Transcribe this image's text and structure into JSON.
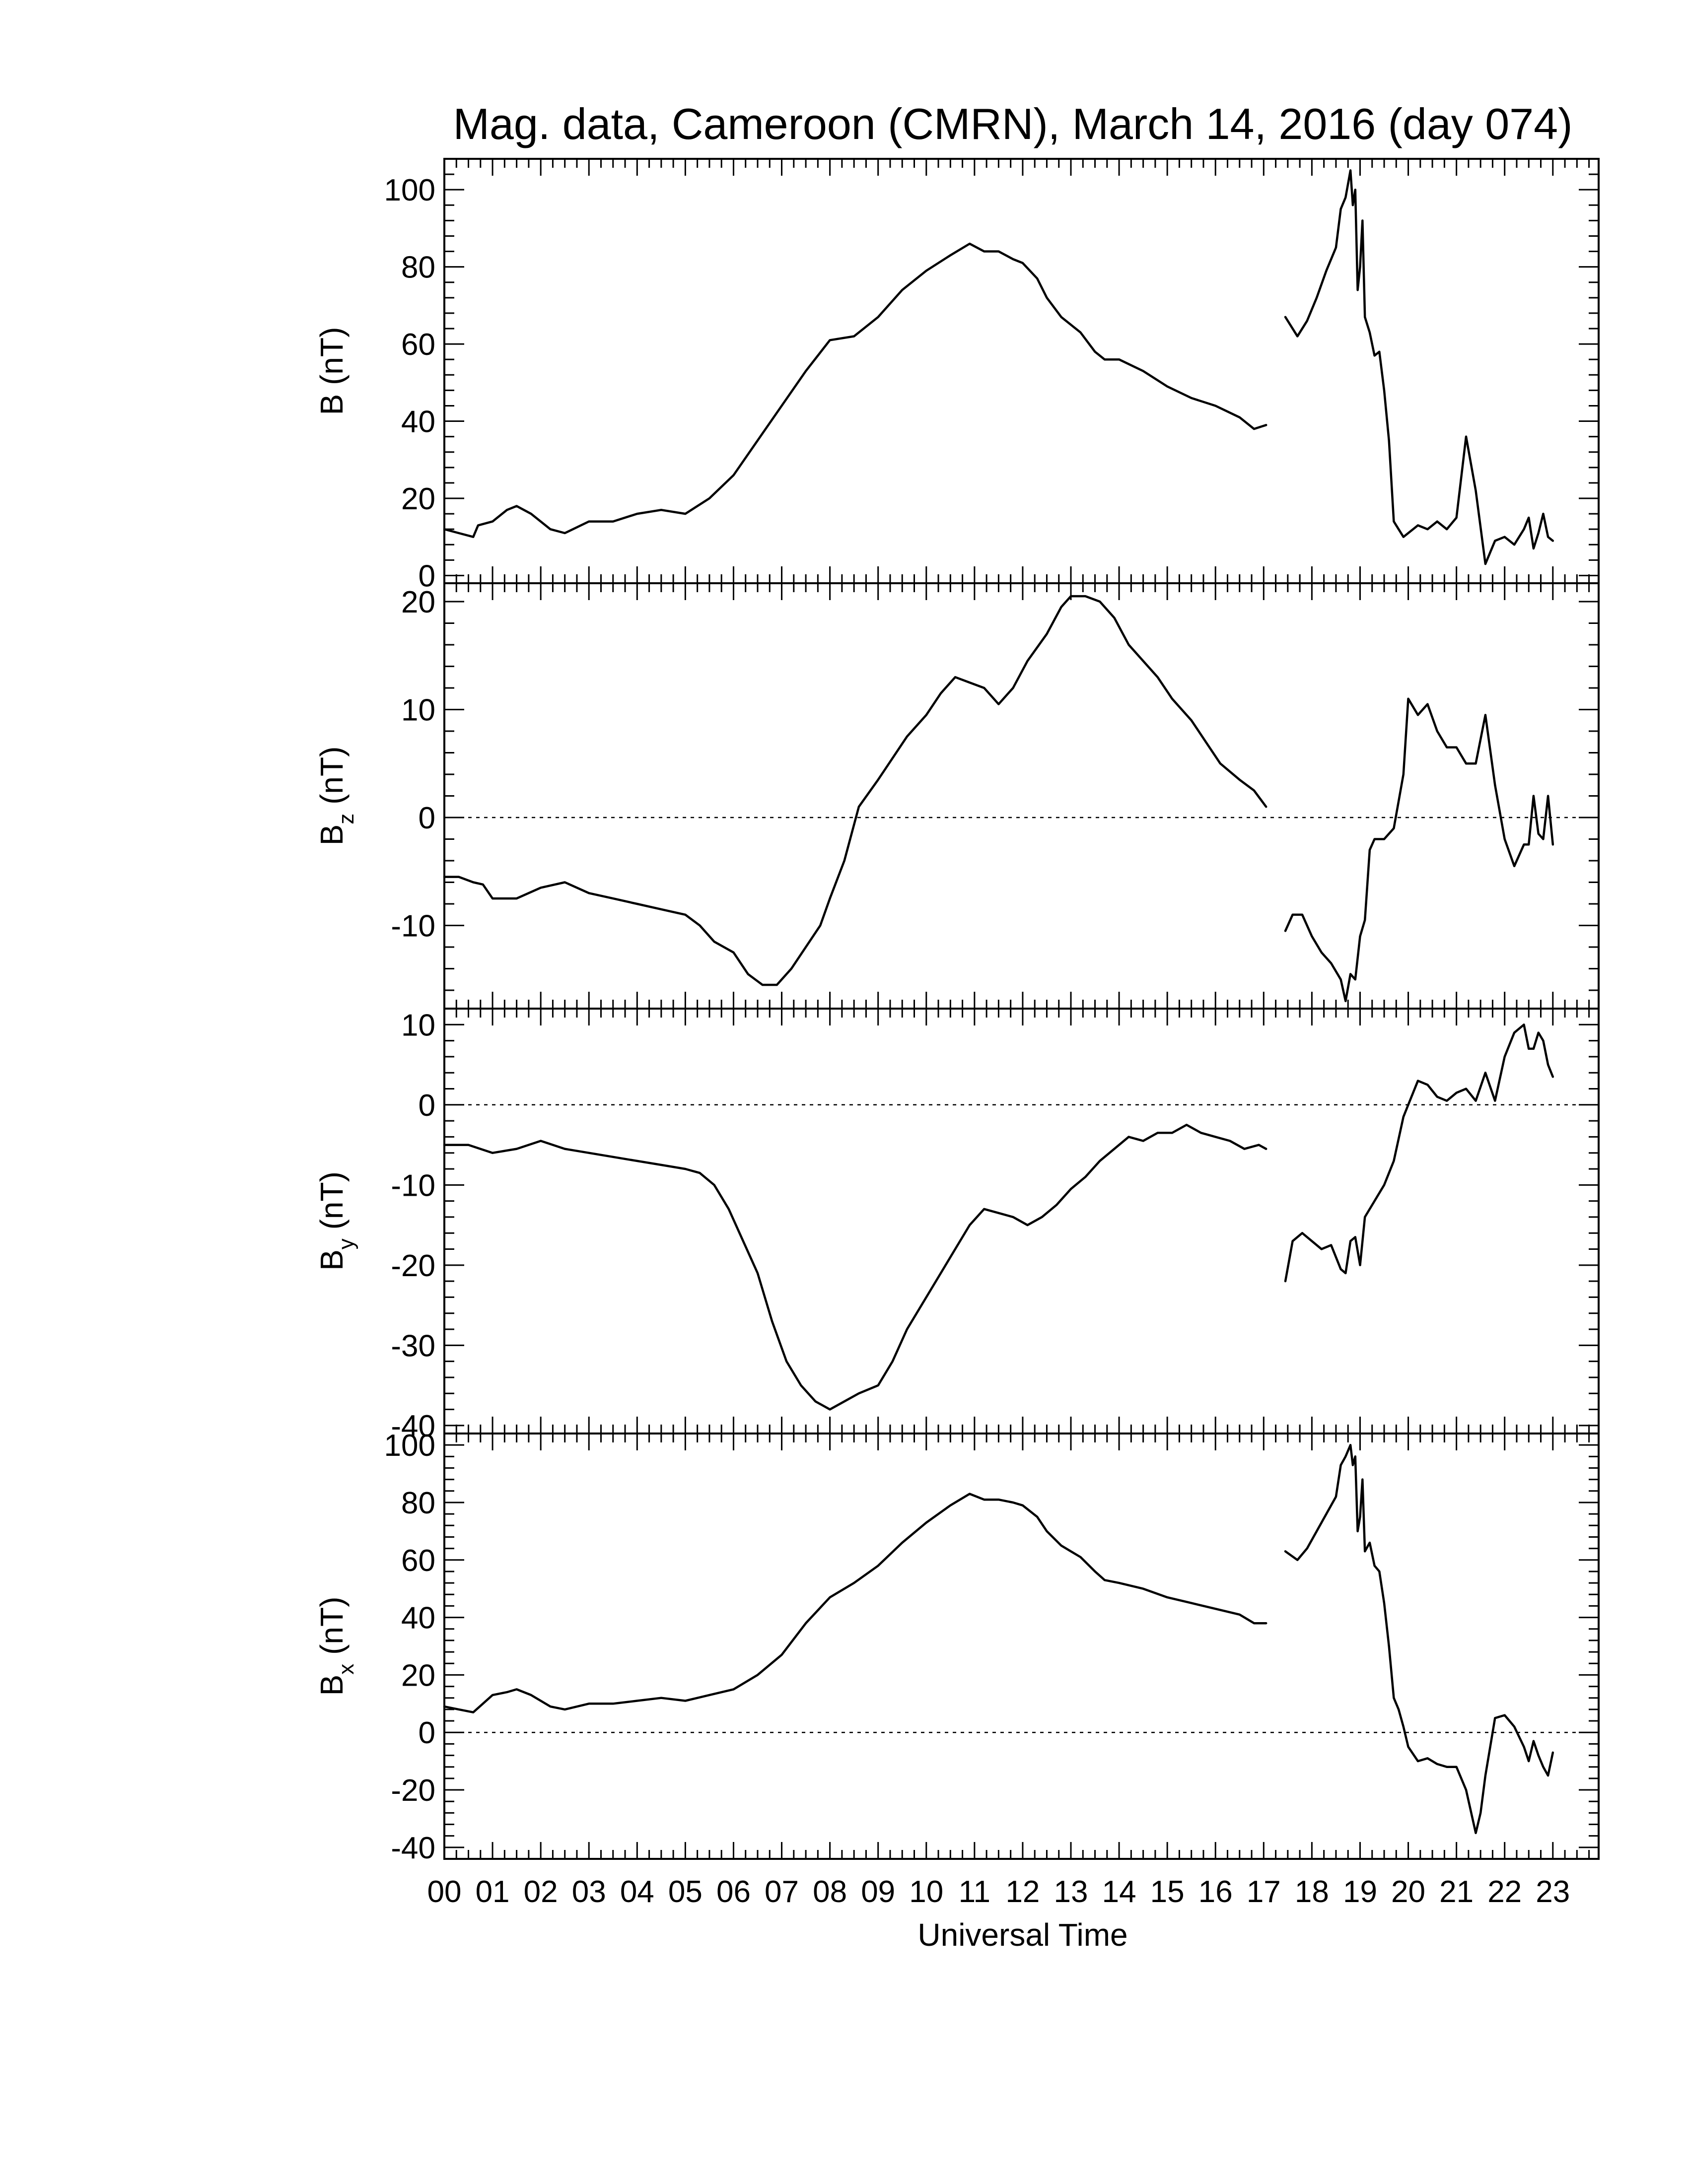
{
  "chart_data": {
    "type": "line",
    "title": "Mag. data, Cameroon (CMRN), March 14, 2016 (day 074)",
    "xlabel": "Universal Time",
    "x_tick_labels": [
      "00",
      "01",
      "02",
      "03",
      "04",
      "05",
      "06",
      "07",
      "08",
      "09",
      "10",
      "11",
      "12",
      "13",
      "14",
      "15",
      "16",
      "17",
      "18",
      "19",
      "20",
      "21",
      "22",
      "23"
    ],
    "xlim": [
      0,
      23.95
    ],
    "data_gap_hours": [
      17.05,
      17.45
    ],
    "panels": [
      {
        "id": "B",
        "ylabel": {
          "main": "B",
          "sub": "",
          "unit": "(nT)"
        },
        "ylim": [
          -2,
          108
        ],
        "yticks": [
          0,
          20,
          40,
          60,
          80,
          100
        ],
        "zero_line": false,
        "series": {
          "x": [
            0,
            0.3,
            0.6,
            0.7,
            1.0,
            1.3,
            1.5,
            1.8,
            2.2,
            2.5,
            3.0,
            3.5,
            4.0,
            4.5,
            5.0,
            5.5,
            6.0,
            6.5,
            7.0,
            7.5,
            8.0,
            8.5,
            9.0,
            9.5,
            10.0,
            10.5,
            10.9,
            11.2,
            11.5,
            11.8,
            12.0,
            12.3,
            12.5,
            12.8,
            13.2,
            13.5,
            13.7,
            14.0,
            14.5,
            15.0,
            15.5,
            16.0,
            16.5,
            16.8,
            17.05,
            null,
            17.45,
            17.7,
            17.9,
            18.1,
            18.3,
            18.5,
            18.6,
            18.7,
            18.8,
            18.85,
            18.9,
            18.95,
            19.0,
            19.05,
            19.1,
            19.2,
            19.3,
            19.4,
            19.5,
            19.6,
            19.7,
            19.8,
            19.9,
            20.0,
            20.2,
            20.4,
            20.6,
            20.8,
            21.0,
            21.2,
            21.4,
            21.6,
            21.7,
            21.8,
            22.0,
            22.2,
            22.4,
            22.5,
            22.6,
            22.7,
            22.8,
            22.9,
            23.0
          ],
          "y": [
            12,
            11,
            10,
            13,
            14,
            17,
            18,
            16,
            12,
            11,
            14,
            14,
            16,
            17,
            16,
            20,
            26,
            35,
            44,
            53,
            61,
            62,
            67,
            74,
            79,
            83,
            86,
            84,
            84,
            82,
            81,
            77,
            72,
            67,
            63,
            58,
            56,
            56,
            53,
            49,
            46,
            44,
            41,
            38,
            39,
            null,
            67,
            62,
            66,
            72,
            79,
            85,
            95,
            98,
            105,
            96,
            100,
            74,
            80,
            92,
            67,
            63,
            57,
            58,
            48,
            35,
            14,
            12,
            10,
            11,
            13,
            12,
            14,
            12,
            15,
            36,
            22,
            3,
            6,
            9,
            10,
            8,
            12,
            15,
            7,
            11,
            16,
            10,
            9
          ]
        }
      },
      {
        "id": "Bz",
        "ylabel": {
          "main": "B",
          "sub": "z",
          "unit": "(nT)"
        },
        "ylim": [
          -17.7,
          21.7
        ],
        "yticks": [
          -10,
          0,
          10,
          20
        ],
        "zero_line": true,
        "series": {
          "x": [
            0,
            0.3,
            0.6,
            0.8,
            1.0,
            1.5,
            2.0,
            2.5,
            3.0,
            3.5,
            4.0,
            4.5,
            5.0,
            5.3,
            5.6,
            6.0,
            6.3,
            6.6,
            6.9,
            7.2,
            7.5,
            7.8,
            8.0,
            8.3,
            8.6,
            9.0,
            9.3,
            9.6,
            10.0,
            10.3,
            10.6,
            10.9,
            11.2,
            11.5,
            11.8,
            12.1,
            12.5,
            12.8,
            13.0,
            13.3,
            13.6,
            13.9,
            14.2,
            14.5,
            14.8,
            15.1,
            15.5,
            15.8,
            16.1,
            16.5,
            16.8,
            17.05,
            null,
            17.45,
            17.6,
            17.8,
            18.0,
            18.2,
            18.4,
            18.6,
            18.7,
            18.8,
            18.9,
            19.0,
            19.1,
            19.2,
            19.3,
            19.5,
            19.7,
            19.9,
            20.0,
            20.2,
            20.4,
            20.6,
            20.8,
            21.0,
            21.2,
            21.4,
            21.6,
            21.8,
            22.0,
            22.2,
            22.4,
            22.5,
            22.6,
            22.7,
            22.8,
            22.9,
            23.0
          ],
          "y": [
            -5.5,
            -5.5,
            -6,
            -6.2,
            -7.5,
            -7.5,
            -6.5,
            -6,
            -7,
            -7.5,
            -8,
            -8.5,
            -9,
            -10,
            -11.5,
            -12.5,
            -14.5,
            -15.5,
            -15.5,
            -14,
            -12,
            -10,
            -7.5,
            -4,
            1,
            3.5,
            5.5,
            7.5,
            9.5,
            11.5,
            13,
            12.5,
            12,
            10.5,
            12,
            14.5,
            17,
            19.5,
            20.5,
            20.5,
            20,
            18.5,
            16,
            14.5,
            13,
            11,
            9,
            7,
            5,
            3.5,
            2.5,
            1,
            null,
            -10.5,
            -9,
            -9,
            -11,
            -12.5,
            -13.5,
            -15,
            -17,
            -14.5,
            -15,
            -11,
            -9.5,
            -3,
            -2,
            -2,
            -1,
            4,
            11,
            9.5,
            10.5,
            8,
            6.5,
            6.5,
            5,
            5,
            9.5,
            3,
            -2,
            -4.5,
            -2.5,
            -2.5,
            2,
            -1.5,
            -2,
            2,
            -2.5
          ]
        }
      },
      {
        "id": "By",
        "ylabel": {
          "main": "B",
          "sub": "y",
          "unit": "(nT)"
        },
        "ylim": [
          -41,
          12
        ],
        "yticks": [
          -40,
          -30,
          -20,
          -10,
          0,
          10
        ],
        "zero_line": true,
        "series": {
          "x": [
            0,
            0.5,
            1.0,
            1.5,
            2.0,
            2.5,
            3.0,
            3.5,
            4.0,
            4.5,
            5.0,
            5.3,
            5.6,
            5.9,
            6.2,
            6.5,
            6.8,
            7.1,
            7.4,
            7.7,
            8.0,
            8.3,
            8.6,
            9.0,
            9.3,
            9.6,
            10.0,
            10.3,
            10.6,
            10.9,
            11.2,
            11.5,
            11.8,
            12.1,
            12.4,
            12.7,
            13.0,
            13.3,
            13.6,
            13.9,
            14.2,
            14.5,
            14.8,
            15.1,
            15.4,
            15.7,
            16.0,
            16.3,
            16.6,
            16.9,
            17.05,
            null,
            17.45,
            17.6,
            17.8,
            18.0,
            18.2,
            18.4,
            18.6,
            18.7,
            18.8,
            18.9,
            19.0,
            19.1,
            19.3,
            19.5,
            19.7,
            19.9,
            20.0,
            20.2,
            20.4,
            20.6,
            20.8,
            21.0,
            21.2,
            21.4,
            21.6,
            21.8,
            22.0,
            22.2,
            22.4,
            22.5,
            22.6,
            22.7,
            22.8,
            22.9,
            23.0
          ],
          "y": [
            -5,
            -5,
            -6,
            -5.5,
            -4.5,
            -5.5,
            -6,
            -6.5,
            -7,
            -7.5,
            -8,
            -8.5,
            -10,
            -13,
            -17,
            -21,
            -27,
            -32,
            -35,
            -37,
            -38,
            -37,
            -36,
            -35,
            -32,
            -28,
            -24,
            -21,
            -18,
            -15,
            -13,
            -13.5,
            -14,
            -15,
            -14,
            -12.5,
            -10.5,
            -9,
            -7,
            -5.5,
            -4,
            -4.5,
            -3.5,
            -3.5,
            -2.5,
            -3.5,
            -4,
            -4.5,
            -5.5,
            -5,
            -5.5,
            null,
            -22,
            -17,
            -16,
            -17,
            -18,
            -17.5,
            -20.5,
            -21,
            -17,
            -16.5,
            -20,
            -14,
            -12,
            -10,
            -7,
            -1.5,
            0,
            3,
            2.5,
            1,
            0.5,
            1.5,
            2,
            0.5,
            4,
            0.5,
            6,
            9,
            10,
            7,
            7,
            9,
            8,
            5,
            3.5
          ]
        }
      },
      {
        "id": "Bx",
        "ylabel": {
          "main": "B",
          "sub": "x",
          "unit": "(nT)"
        },
        "ylim": [
          -44,
          104
        ],
        "yticks": [
          -40,
          -20,
          0,
          20,
          40,
          60,
          80,
          100
        ],
        "zero_line": true,
        "series": {
          "x": [
            0,
            0.3,
            0.6,
            0.8,
            1.0,
            1.3,
            1.5,
            1.8,
            2.2,
            2.5,
            3.0,
            3.5,
            4.0,
            4.5,
            5.0,
            5.5,
            6.0,
            6.5,
            7.0,
            7.5,
            8.0,
            8.5,
            9.0,
            9.5,
            10.0,
            10.5,
            10.9,
            11.2,
            11.5,
            11.8,
            12.0,
            12.3,
            12.5,
            12.8,
            13.2,
            13.5,
            13.7,
            14.0,
            14.5,
            15.0,
            15.5,
            16.0,
            16.5,
            16.8,
            17.05,
            null,
            17.45,
            17.7,
            17.9,
            18.1,
            18.3,
            18.5,
            18.6,
            18.7,
            18.8,
            18.85,
            18.9,
            18.95,
            19.0,
            19.05,
            19.1,
            19.2,
            19.3,
            19.4,
            19.5,
            19.6,
            19.7,
            19.8,
            19.9,
            20.0,
            20.2,
            20.4,
            20.6,
            20.8,
            21.0,
            21.2,
            21.4,
            21.5,
            21.6,
            21.7,
            21.8,
            22.0,
            22.2,
            22.4,
            22.5,
            22.6,
            22.7,
            22.8,
            22.9,
            23.0
          ],
          "y": [
            9,
            8,
            7,
            10,
            13,
            14,
            15,
            13,
            9,
            8,
            10,
            10,
            11,
            12,
            11,
            13,
            15,
            20,
            27,
            38,
            47,
            52,
            58,
            66,
            73,
            79,
            83,
            81,
            81,
            80,
            79,
            75,
            70,
            65,
            61,
            56,
            53,
            52,
            50,
            47,
            45,
            43,
            41,
            38,
            38,
            null,
            63,
            60,
            64,
            70,
            76,
            82,
            93,
            96,
            100,
            93,
            96,
            70,
            75,
            88,
            63,
            66,
            58,
            56,
            45,
            30,
            12,
            8,
            2,
            -5,
            -10,
            -9,
            -11,
            -12,
            -12,
            -20,
            -35,
            -28,
            -15,
            -5,
            5,
            6,
            2,
            -5,
            -10,
            -3,
            -8,
            -12,
            -15,
            -7
          ]
        }
      }
    ],
    "grid": false,
    "legend": "none"
  }
}
